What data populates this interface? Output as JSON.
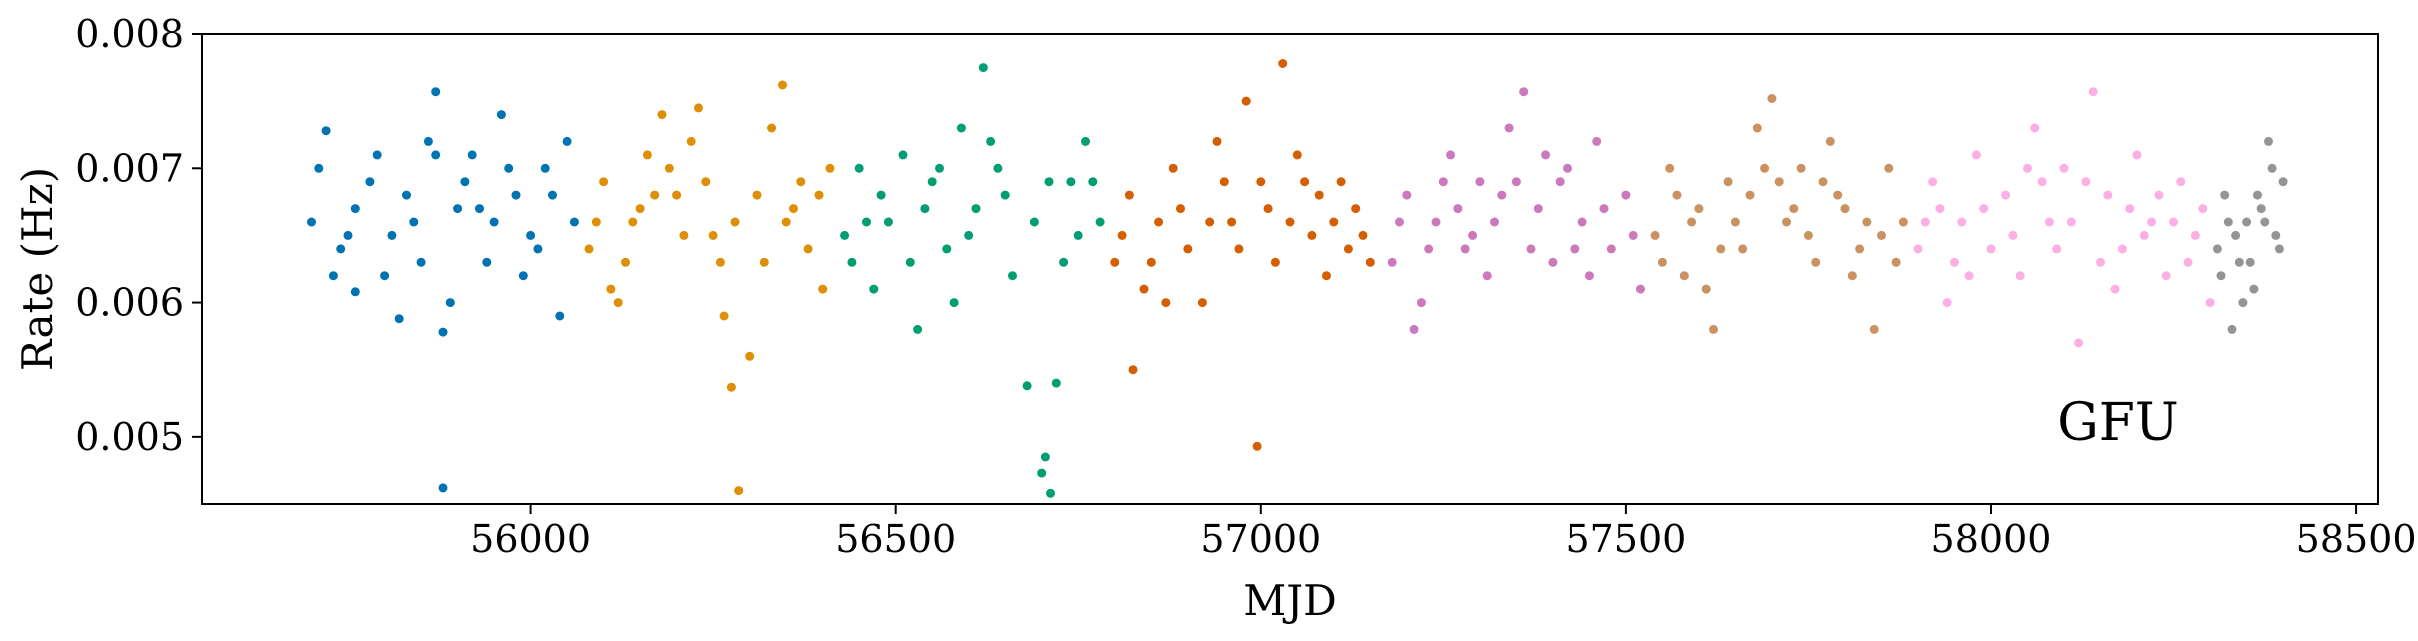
{
  "chart_data": {
    "type": "scatter",
    "title": "",
    "xlabel": "MJD",
    "ylabel": "Rate (Hz)",
    "xlim": [
      55550,
      58530
    ],
    "ylim": [
      0.0045,
      0.008
    ],
    "xticks": [
      "56000",
      "56500",
      "57000",
      "57500",
      "58000",
      "58500"
    ],
    "xtick_values": [
      56000,
      56500,
      57000,
      57500,
      58000,
      58500
    ],
    "yticks": [
      "0.005",
      "0.006",
      "0.007",
      "0.008"
    ],
    "ytick_values": [
      0.005,
      0.006,
      0.007,
      0.008
    ],
    "annotation": "GFU",
    "grid": false,
    "legend": "none",
    "series": [
      {
        "color": "#0173b2",
        "points": [
          [
            55700,
            0.0066
          ],
          [
            55720,
            0.00728
          ],
          [
            55740,
            0.0064
          ],
          [
            55760,
            0.00608
          ],
          [
            55780,
            0.0069
          ],
          [
            55800,
            0.0062
          ],
          [
            55820,
            0.00588
          ],
          [
            55840,
            0.0066
          ],
          [
            55860,
            0.0072
          ],
          [
            55870,
            0.00757
          ],
          [
            55880,
            0.00578
          ],
          [
            55880,
            0.00462
          ],
          [
            55900,
            0.0067
          ],
          [
            55920,
            0.0071
          ],
          [
            55940,
            0.0063
          ],
          [
            55960,
            0.0074
          ],
          [
            55980,
            0.0068
          ],
          [
            56000,
            0.0065
          ],
          [
            56020,
            0.007
          ],
          [
            56040,
            0.0059
          ],
          [
            56050,
            0.0072
          ],
          [
            56060,
            0.0066
          ],
          [
            55710,
            0.007
          ],
          [
            55760,
            0.0067
          ],
          [
            55810,
            0.0065
          ],
          [
            55850,
            0.0063
          ],
          [
            55910,
            0.0069
          ],
          [
            55950,
            0.0066
          ],
          [
            55990,
            0.0062
          ],
          [
            56030,
            0.0068
          ],
          [
            55730,
            0.0062
          ],
          [
            55790,
            0.0071
          ],
          [
            55830,
            0.0068
          ],
          [
            55890,
            0.006
          ],
          [
            55930,
            0.0067
          ],
          [
            55970,
            0.007
          ],
          [
            56010,
            0.0064
          ],
          [
            55750,
            0.0065
          ],
          [
            55870,
            0.0071
          ]
        ]
      },
      {
        "color": "#de8f05",
        "points": [
          [
            56080,
            0.0064
          ],
          [
            56100,
            0.0069
          ],
          [
            56120,
            0.006
          ],
          [
            56140,
            0.0066
          ],
          [
            56160,
            0.0071
          ],
          [
            56180,
            0.0074
          ],
          [
            56200,
            0.0068
          ],
          [
            56220,
            0.0072
          ],
          [
            56230,
            0.00745
          ],
          [
            56250,
            0.0065
          ],
          [
            56265,
            0.0059
          ],
          [
            56275,
            0.00537
          ],
          [
            56285,
            0.0046
          ],
          [
            56300,
            0.0056
          ],
          [
            56310,
            0.0068
          ],
          [
            56330,
            0.0073
          ],
          [
            56345,
            0.00762
          ],
          [
            56360,
            0.0067
          ],
          [
            56380,
            0.0064
          ],
          [
            56400,
            0.0061
          ],
          [
            56410,
            0.007
          ],
          [
            56090,
            0.0066
          ],
          [
            56130,
            0.0063
          ],
          [
            56170,
            0.0068
          ],
          [
            56210,
            0.0065
          ],
          [
            56240,
            0.0069
          ],
          [
            56280,
            0.0066
          ],
          [
            56320,
            0.0063
          ],
          [
            56370,
            0.0069
          ],
          [
            56110,
            0.0061
          ],
          [
            56150,
            0.0067
          ],
          [
            56190,
            0.007
          ],
          [
            56260,
            0.0063
          ],
          [
            56350,
            0.0066
          ],
          [
            56395,
            0.0068
          ]
        ]
      },
      {
        "color": "#029e73",
        "points": [
          [
            56430,
            0.0065
          ],
          [
            56450,
            0.007
          ],
          [
            56470,
            0.0061
          ],
          [
            56490,
            0.0066
          ],
          [
            56510,
            0.0071
          ],
          [
            56530,
            0.0058
          ],
          [
            56550,
            0.0069
          ],
          [
            56570,
            0.0064
          ],
          [
            56590,
            0.0073
          ],
          [
            56610,
            0.0067
          ],
          [
            56620,
            0.00775
          ],
          [
            56640,
            0.007
          ],
          [
            56660,
            0.0062
          ],
          [
            56680,
            0.00538
          ],
          [
            56700,
            0.00473
          ],
          [
            56705,
            0.00485
          ],
          [
            56712,
            0.00458
          ],
          [
            56720,
            0.0054
          ],
          [
            56740,
            0.0069
          ],
          [
            56760,
            0.0072
          ],
          [
            56780,
            0.0066
          ],
          [
            56440,
            0.0063
          ],
          [
            56480,
            0.0068
          ],
          [
            56520,
            0.0063
          ],
          [
            56560,
            0.007
          ],
          [
            56600,
            0.0065
          ],
          [
            56650,
            0.0068
          ],
          [
            56690,
            0.0066
          ],
          [
            56730,
            0.0063
          ],
          [
            56770,
            0.0069
          ],
          [
            56460,
            0.0066
          ],
          [
            56540,
            0.0067
          ],
          [
            56580,
            0.006
          ],
          [
            56630,
            0.0072
          ],
          [
            56710,
            0.0069
          ],
          [
            56750,
            0.0065
          ]
        ]
      },
      {
        "color": "#d55e00",
        "points": [
          [
            56800,
            0.0063
          ],
          [
            56820,
            0.0068
          ],
          [
            56825,
            0.0055
          ],
          [
            56840,
            0.0061
          ],
          [
            56860,
            0.0066
          ],
          [
            56880,
            0.007
          ],
          [
            56900,
            0.0064
          ],
          [
            56920,
            0.006
          ],
          [
            56940,
            0.0072
          ],
          [
            56960,
            0.0066
          ],
          [
            56980,
            0.0075
          ],
          [
            56995,
            0.00493
          ],
          [
            57000,
            0.0069
          ],
          [
            57020,
            0.0063
          ],
          [
            57030,
            0.00778
          ],
          [
            57050,
            0.0071
          ],
          [
            57070,
            0.0065
          ],
          [
            57090,
            0.0062
          ],
          [
            57110,
            0.0069
          ],
          [
            57130,
            0.0067
          ],
          [
            57150,
            0.0063
          ],
          [
            56810,
            0.0065
          ],
          [
            56850,
            0.0063
          ],
          [
            56890,
            0.0067
          ],
          [
            56930,
            0.0066
          ],
          [
            56970,
            0.0064
          ],
          [
            57010,
            0.0067
          ],
          [
            57060,
            0.0069
          ],
          [
            57100,
            0.0066
          ],
          [
            57140,
            0.0065
          ],
          [
            56870,
            0.006
          ],
          [
            56950,
            0.0069
          ],
          [
            57040,
            0.0066
          ],
          [
            57080,
            0.0068
          ],
          [
            57120,
            0.0064
          ]
        ]
      },
      {
        "color": "#cc78bc",
        "points": [
          [
            57180,
            0.0063
          ],
          [
            57200,
            0.0068
          ],
          [
            57220,
            0.006
          ],
          [
            57240,
            0.0066
          ],
          [
            57260,
            0.0071
          ],
          [
            57280,
            0.0064
          ],
          [
            57300,
            0.0069
          ],
          [
            57320,
            0.0066
          ],
          [
            57340,
            0.0073
          ],
          [
            57360,
            0.00757
          ],
          [
            57380,
            0.0067
          ],
          [
            57400,
            0.0063
          ],
          [
            57420,
            0.007
          ],
          [
            57440,
            0.0066
          ],
          [
            57460,
            0.0072
          ],
          [
            57480,
            0.0064
          ],
          [
            57500,
            0.0068
          ],
          [
            57520,
            0.0061
          ],
          [
            57190,
            0.0066
          ],
          [
            57230,
            0.0064
          ],
          [
            57270,
            0.0067
          ],
          [
            57310,
            0.0062
          ],
          [
            57350,
            0.0069
          ],
          [
            57390,
            0.0071
          ],
          [
            57430,
            0.0064
          ],
          [
            57470,
            0.0067
          ],
          [
            57510,
            0.0065
          ],
          [
            57210,
            0.0058
          ],
          [
            57250,
            0.0069
          ],
          [
            57290,
            0.0065
          ],
          [
            57330,
            0.0068
          ],
          [
            57370,
            0.0064
          ],
          [
            57410,
            0.0069
          ],
          [
            57450,
            0.0062
          ]
        ]
      },
      {
        "color": "#ca9161",
        "points": [
          [
            57540,
            0.0065
          ],
          [
            57560,
            0.007
          ],
          [
            57580,
            0.0062
          ],
          [
            57600,
            0.0067
          ],
          [
            57620,
            0.0058
          ],
          [
            57640,
            0.0069
          ],
          [
            57660,
            0.0064
          ],
          [
            57680,
            0.0073
          ],
          [
            57700,
            0.00752
          ],
          [
            57720,
            0.0066
          ],
          [
            57740,
            0.007
          ],
          [
            57760,
            0.0063
          ],
          [
            57780,
            0.0072
          ],
          [
            57800,
            0.0067
          ],
          [
            57820,
            0.0064
          ],
          [
            57840,
            0.0058
          ],
          [
            57860,
            0.007
          ],
          [
            57880,
            0.0066
          ],
          [
            57550,
            0.0063
          ],
          [
            57590,
            0.0066
          ],
          [
            57630,
            0.0064
          ],
          [
            57670,
            0.0068
          ],
          [
            57710,
            0.0069
          ],
          [
            57750,
            0.0065
          ],
          [
            57790,
            0.0068
          ],
          [
            57830,
            0.0066
          ],
          [
            57870,
            0.0063
          ],
          [
            57570,
            0.0068
          ],
          [
            57610,
            0.0061
          ],
          [
            57650,
            0.0066
          ],
          [
            57690,
            0.007
          ],
          [
            57730,
            0.0067
          ],
          [
            57770,
            0.0069
          ],
          [
            57810,
            0.0062
          ],
          [
            57850,
            0.0065
          ]
        ]
      },
      {
        "color": "#fbafe4",
        "points": [
          [
            57900,
            0.0064
          ],
          [
            57920,
            0.0069
          ],
          [
            57940,
            0.006
          ],
          [
            57960,
            0.0066
          ],
          [
            57980,
            0.0071
          ],
          [
            58000,
            0.0064
          ],
          [
            58020,
            0.0068
          ],
          [
            58040,
            0.0062
          ],
          [
            58060,
            0.0073
          ],
          [
            58080,
            0.0066
          ],
          [
            58100,
            0.007
          ],
          [
            58120,
            0.0057
          ],
          [
            58140,
            0.00757
          ],
          [
            58160,
            0.0068
          ],
          [
            58180,
            0.0064
          ],
          [
            58200,
            0.0071
          ],
          [
            58220,
            0.0066
          ],
          [
            58240,
            0.0062
          ],
          [
            58260,
            0.0069
          ],
          [
            58280,
            0.0065
          ],
          [
            58300,
            0.006
          ],
          [
            57910,
            0.0066
          ],
          [
            57950,
            0.0063
          ],
          [
            57990,
            0.0067
          ],
          [
            58030,
            0.0065
          ],
          [
            58070,
            0.0069
          ],
          [
            58110,
            0.0066
          ],
          [
            58150,
            0.0063
          ],
          [
            58190,
            0.0067
          ],
          [
            58230,
            0.0068
          ],
          [
            58270,
            0.0063
          ],
          [
            57930,
            0.0067
          ],
          [
            57970,
            0.0062
          ],
          [
            58050,
            0.007
          ],
          [
            58090,
            0.0064
          ],
          [
            58130,
            0.0069
          ],
          [
            58170,
            0.0061
          ],
          [
            58210,
            0.0065
          ],
          [
            58250,
            0.0066
          ],
          [
            58290,
            0.0067
          ]
        ]
      },
      {
        "color": "#949494",
        "points": [
          [
            58310,
            0.0064
          ],
          [
            58320,
            0.0068
          ],
          [
            58330,
            0.0058
          ],
          [
            58340,
            0.0063
          ],
          [
            58350,
            0.0066
          ],
          [
            58360,
            0.0061
          ],
          [
            58370,
            0.0067
          ],
          [
            58380,
            0.0072
          ],
          [
            58390,
            0.0065
          ],
          [
            58400,
            0.0069
          ],
          [
            58315,
            0.0062
          ],
          [
            58335,
            0.0065
          ],
          [
            58355,
            0.0063
          ],
          [
            58375,
            0.0066
          ],
          [
            58395,
            0.0064
          ],
          [
            58325,
            0.0066
          ],
          [
            58345,
            0.006
          ],
          [
            58365,
            0.0068
          ],
          [
            58385,
            0.007
          ]
        ]
      }
    ]
  }
}
